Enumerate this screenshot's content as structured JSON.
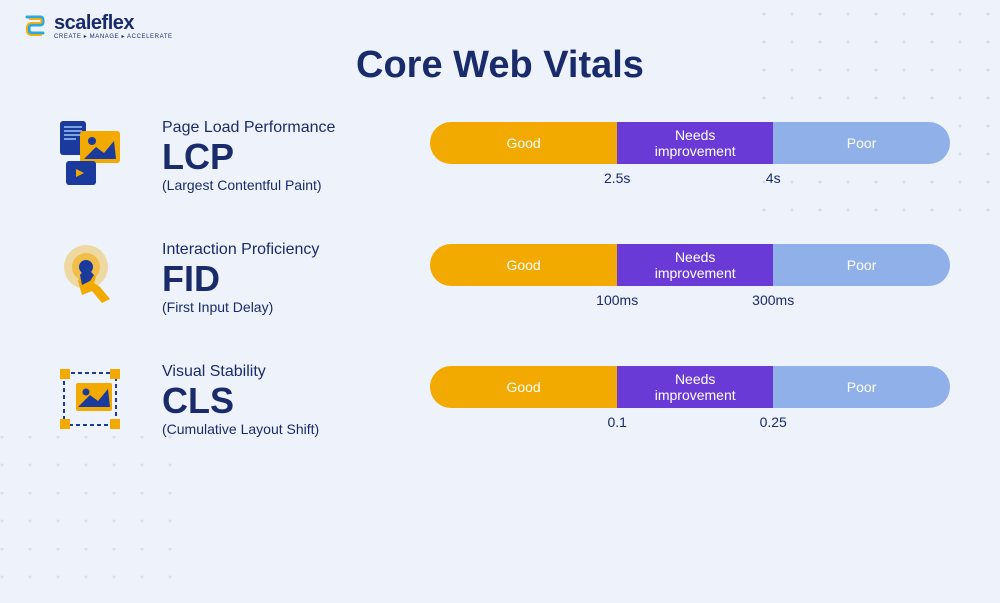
{
  "brand": {
    "name": "scaleflex",
    "tagline": "CREATE ▸ MANAGE ▸ ACCELERATE"
  },
  "title": "Core Web Vitals",
  "colors": {
    "good": "#f2a900",
    "mid": "#6a3ad6",
    "poor": "#8fb0e8",
    "text": "#1a2b6b",
    "bg": "#eef3fb"
  },
  "segment_labels": {
    "good": "Good",
    "mid": "Needs\nimprovement",
    "poor": "Poor"
  },
  "metrics": [
    {
      "id": "lcp",
      "category": "Page Load Performance",
      "abbrev": "LCP",
      "fullname": "(Largest Contentful Paint)",
      "thresholds": [
        "2.5s",
        "4s"
      ],
      "seg_widths_pct": [
        36,
        30,
        34
      ]
    },
    {
      "id": "fid",
      "category": "Interaction Proficiency",
      "abbrev": "FID",
      "fullname": "(First Input Delay)",
      "thresholds": [
        "100ms",
        "300ms"
      ],
      "seg_widths_pct": [
        36,
        30,
        34
      ]
    },
    {
      "id": "cls",
      "category": "Visual Stability",
      "abbrev": "CLS",
      "fullname": "(Cumulative Layout Shift)",
      "thresholds": [
        "0.1",
        "0.25"
      ],
      "seg_widths_pct": [
        36,
        30,
        34
      ]
    }
  ]
}
